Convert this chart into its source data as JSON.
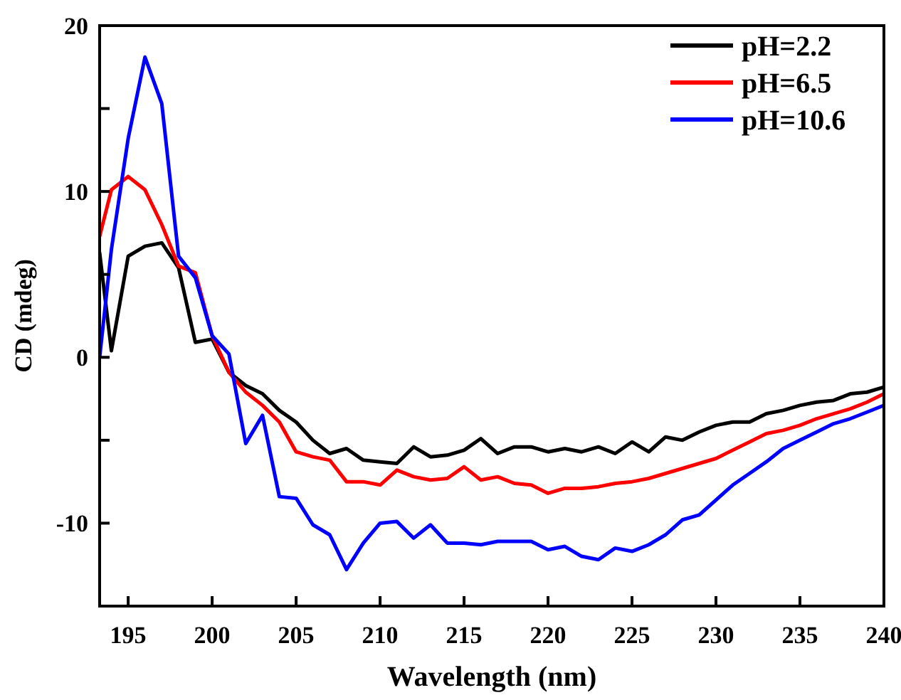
{
  "chart_data": {
    "type": "line",
    "xlabel": "Wavelength (nm)",
    "ylabel": "CD (mdeg)",
    "x": [
      193.3,
      194,
      195,
      196,
      197,
      198,
      199,
      200,
      201,
      202,
      203,
      204,
      205,
      206,
      207,
      208,
      209,
      210,
      211,
      212,
      213,
      214,
      215,
      216,
      217,
      218,
      219,
      220,
      221,
      222,
      223,
      224,
      225,
      226,
      227,
      228,
      229,
      230,
      231,
      232,
      233,
      234,
      235,
      236,
      237,
      238,
      239,
      240
    ],
    "series": [
      {
        "name": "pH=2.2",
        "color": "#000000",
        "values": [
          6.3,
          0.4,
          6.1,
          6.7,
          6.9,
          5.4,
          0.9,
          1.1,
          -0.9,
          -1.7,
          -2.2,
          -3.2,
          -3.9,
          -5.0,
          -5.8,
          -5.5,
          -6.2,
          -6.3,
          -6.4,
          -5.4,
          -6.0,
          -5.9,
          -5.6,
          -4.9,
          -5.8,
          -5.4,
          -5.4,
          -5.7,
          -5.5,
          -5.7,
          -5.4,
          -5.8,
          -5.1,
          -5.7,
          -4.8,
          -5.0,
          -4.5,
          -4.1,
          -3.9,
          -3.9,
          -3.4,
          -3.2,
          -2.9,
          -2.7,
          -2.6,
          -2.2,
          -2.1,
          -1.8
        ]
      },
      {
        "name": "pH=6.5",
        "color": "#ff0000",
        "values": [
          7.3,
          10.1,
          10.9,
          10.1,
          8.0,
          5.5,
          5.1,
          1.3,
          -0.9,
          -2.1,
          -2.9,
          -3.9,
          -5.7,
          -6.0,
          -6.2,
          -7.5,
          -7.5,
          -7.7,
          -6.8,
          -7.2,
          -7.4,
          -7.3,
          -6.6,
          -7.4,
          -7.2,
          -7.6,
          -7.7,
          -8.2,
          -7.9,
          -7.9,
          -7.8,
          -7.6,
          -7.5,
          -7.3,
          -7.0,
          -6.7,
          -6.4,
          -6.1,
          -5.6,
          -5.1,
          -4.6,
          -4.4,
          -4.1,
          -3.7,
          -3.4,
          -3.1,
          -2.7,
          -2.2
        ]
      },
      {
        "name": "pH=10.6",
        "color": "#0000ff",
        "values": [
          0.0,
          6.5,
          13.2,
          18.1,
          15.3,
          6.1,
          4.8,
          1.3,
          0.2,
          -5.2,
          -3.5,
          -8.4,
          -8.5,
          -10.1,
          -10.7,
          -12.8,
          -11.2,
          -10.0,
          -9.9,
          -10.9,
          -10.1,
          -11.2,
          -11.2,
          -11.3,
          -11.1,
          -11.1,
          -11.1,
          -11.6,
          -11.4,
          -12.0,
          -12.2,
          -11.5,
          -11.7,
          -11.3,
          -10.7,
          -9.8,
          -9.5,
          -8.6,
          -7.7,
          -7.0,
          -6.3,
          -5.5,
          -5.0,
          -4.5,
          -4.0,
          -3.7,
          -3.3,
          -2.9
        ]
      }
    ],
    "xlim": [
      193.3,
      240
    ],
    "xticks": [
      195,
      200,
      205,
      210,
      215,
      220,
      225,
      230,
      235,
      240
    ],
    "ylim": [
      -15,
      20
    ],
    "yticks": [
      {
        "value": -15,
        "label": null
      },
      -10,
      {
        "value": -5,
        "label": null
      },
      0,
      {
        "value": 5,
        "label": null
      },
      10,
      {
        "value": 15,
        "label": null
      },
      20
    ],
    "legend": "top right",
    "grid": false,
    "marker": "none",
    "line_style": "solid"
  }
}
